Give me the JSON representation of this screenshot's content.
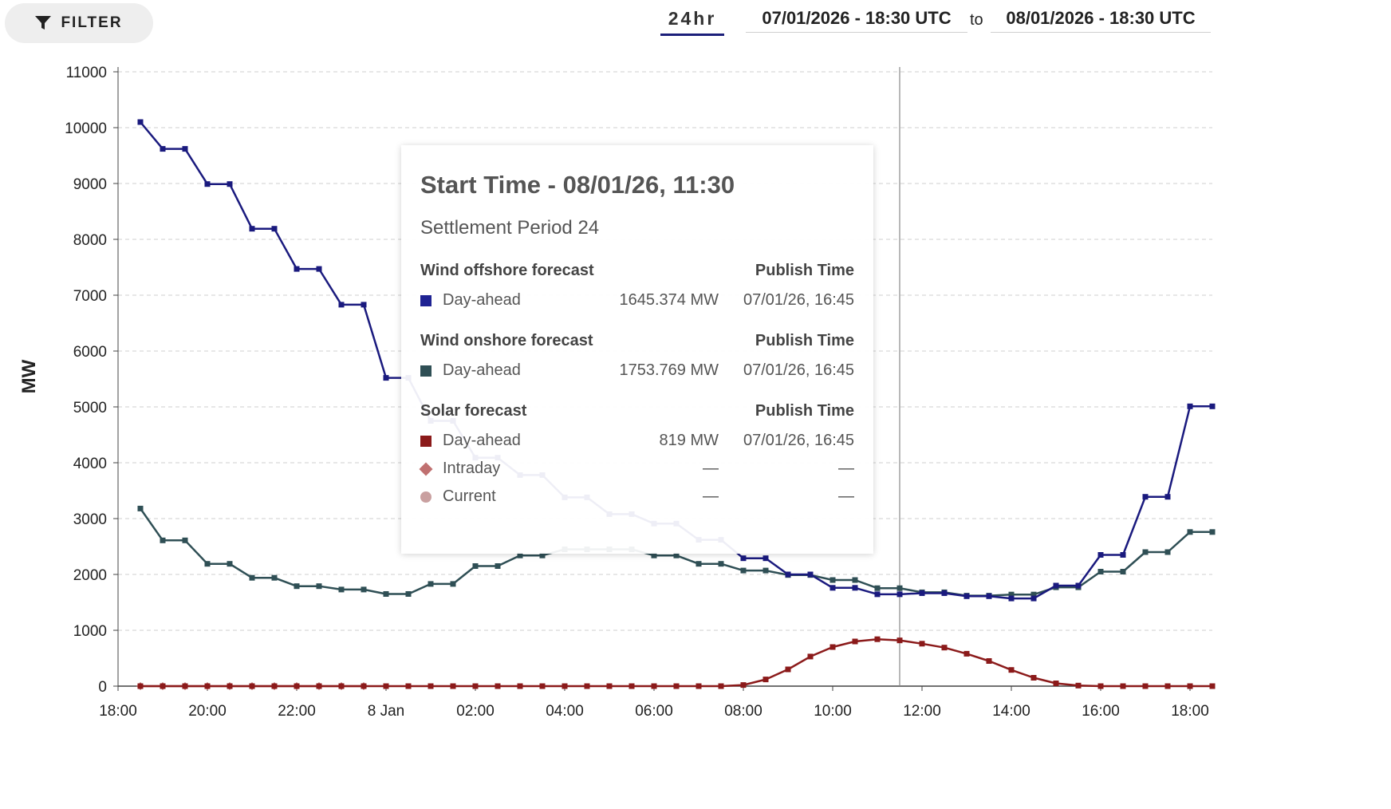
{
  "toolbar": {
    "filter_label": "FILTER",
    "range_label": "24hr",
    "date_from": "07/01/2026 - 18:30 UTC",
    "date_separator": "to",
    "date_to": "08/01/2026 - 18:30 UTC"
  },
  "tooltip": {
    "title": "Start Time - 08/01/26, 11:30",
    "subtitle": "Settlement Period 24",
    "groups": [
      {
        "name": "Wind offshore forecast",
        "time_header": "Publish Time",
        "rows": [
          {
            "marker": "square",
            "color": "#1f2393",
            "label": "Day-ahead",
            "value": "1645.374 MW",
            "time": "07/01/26, 16:45"
          }
        ]
      },
      {
        "name": "Wind onshore forecast",
        "time_header": "Publish Time",
        "rows": [
          {
            "marker": "square",
            "color": "#2f4f55",
            "label": "Day-ahead",
            "value": "1753.769 MW",
            "time": "07/01/26, 16:45"
          }
        ]
      },
      {
        "name": "Solar forecast",
        "time_header": "Publish Time",
        "rows": [
          {
            "marker": "square",
            "color": "#8b1a1a",
            "label": "Day-ahead",
            "value": "819 MW",
            "time": "07/01/26, 16:45"
          },
          {
            "marker": "diamond",
            "color": "#c07070",
            "label": "Intraday",
            "value": "—",
            "time": "—"
          },
          {
            "marker": "circle",
            "color": "#c9a0a0",
            "label": "Current",
            "value": "—",
            "time": "—"
          }
        ]
      }
    ]
  },
  "chart_data": {
    "type": "line",
    "ylabel": "MW",
    "ylim": [
      0,
      11000
    ],
    "y_ticks": [
      0,
      1000,
      2000,
      3000,
      4000,
      5000,
      6000,
      7000,
      8000,
      9000,
      10000,
      11000
    ],
    "x_range_hours": [
      18,
      42.5
    ],
    "x_ticks": [
      {
        "hour": 18,
        "label": "18:00"
      },
      {
        "hour": 20,
        "label": "20:00"
      },
      {
        "hour": 22,
        "label": "22:00"
      },
      {
        "hour": 24,
        "label": "8 Jan"
      },
      {
        "hour": 26,
        "label": "02:00"
      },
      {
        "hour": 28,
        "label": "04:00"
      },
      {
        "hour": 30,
        "label": "06:00"
      },
      {
        "hour": 32,
        "label": "08:00"
      },
      {
        "hour": 34,
        "label": "10:00"
      },
      {
        "hour": 36,
        "label": "12:00"
      },
      {
        "hour": 38,
        "label": "14:00"
      },
      {
        "hour": 40,
        "label": "16:00"
      },
      {
        "hour": 42,
        "label": "18:00"
      }
    ],
    "grid": true,
    "hover_hour": 35.5,
    "series": [
      {
        "name": "Wind offshore forecast",
        "color": "#1a1a7e",
        "x": [
          18.5,
          19,
          19.5,
          20,
          20.5,
          21,
          21.5,
          22,
          22.5,
          23,
          23.5,
          24,
          24.5,
          25,
          25.5,
          26,
          26.5,
          27,
          27.5,
          28,
          28.5,
          29,
          29.5,
          30,
          30.5,
          31,
          31.5,
          32,
          32.5,
          33,
          33.5,
          34,
          34.5,
          35,
          35.5,
          36,
          36.5,
          37,
          37.5,
          38,
          38.5,
          39,
          39.5,
          40,
          40.5,
          41,
          41.5,
          42,
          42.5
        ],
        "values": [
          10100,
          9620,
          9620,
          8990,
          8990,
          8190,
          8190,
          7470,
          7470,
          6830,
          6830,
          5520,
          5520,
          4750,
          4750,
          4090,
          4090,
          3780,
          3780,
          3380,
          3380,
          3080,
          3080,
          2910,
          2910,
          2620,
          2620,
          2290,
          2290,
          2000,
          2000,
          1760,
          1760,
          1645,
          1645,
          1665,
          1665,
          1610,
          1610,
          1570,
          1570,
          1800,
          1800,
          2350,
          2350,
          3390,
          3390,
          5010,
          5010
        ]
      },
      {
        "name": "Wind onshore forecast",
        "color": "#2f4f55",
        "x": [
          18.5,
          19,
          19.5,
          20,
          20.5,
          21,
          21.5,
          22,
          22.5,
          23,
          23.5,
          24,
          24.5,
          25,
          25.5,
          26,
          26.5,
          27,
          27.5,
          28,
          28.5,
          29,
          29.5,
          30,
          30.5,
          31,
          31.5,
          32,
          32.5,
          33,
          33.5,
          34,
          34.5,
          35,
          35.5,
          36,
          36.5,
          37,
          37.5,
          38,
          38.5,
          39,
          39.5,
          40,
          40.5,
          41,
          41.5,
          42,
          42.5
        ],
        "values": [
          3180,
          2610,
          2610,
          2190,
          2190,
          1940,
          1940,
          1790,
          1790,
          1730,
          1730,
          1650,
          1650,
          1830,
          1830,
          2150,
          2150,
          2340,
          2340,
          2450,
          2450,
          2450,
          2450,
          2340,
          2340,
          2190,
          2190,
          2070,
          2070,
          1990,
          1990,
          1900,
          1900,
          1754,
          1754,
          1680,
          1680,
          1620,
          1620,
          1640,
          1640,
          1770,
          1770,
          2050,
          2050,
          2400,
          2400,
          2760,
          2760
        ]
      },
      {
        "name": "Solar forecast",
        "color": "#8b1a1a",
        "x": [
          18.5,
          19,
          19.5,
          20,
          20.5,
          21,
          21.5,
          22,
          22.5,
          23,
          23.5,
          24,
          24.5,
          25,
          25.5,
          26,
          26.5,
          27,
          27.5,
          28,
          28.5,
          29,
          29.5,
          30,
          30.5,
          31,
          31.5,
          32,
          32.5,
          33,
          33.5,
          34,
          34.5,
          35,
          35.5,
          36,
          36.5,
          37,
          37.5,
          38,
          38.5,
          39,
          39.5,
          40,
          40.5,
          41,
          41.5,
          42,
          42.5
        ],
        "values": [
          0,
          0,
          0,
          0,
          0,
          0,
          0,
          0,
          0,
          0,
          0,
          0,
          0,
          0,
          0,
          0,
          0,
          0,
          0,
          0,
          0,
          0,
          0,
          0,
          0,
          0,
          0,
          20,
          120,
          300,
          530,
          700,
          800,
          840,
          819,
          760,
          690,
          580,
          450,
          290,
          150,
          50,
          10,
          0,
          0,
          0,
          0,
          0,
          0
        ]
      },
      {
        "name": "Solar intraday",
        "color": "#c07070",
        "x": [
          18.5,
          19,
          19.5,
          20,
          20.5,
          21,
          21.5,
          22,
          22.5,
          23,
          23.5
        ],
        "values": [
          0,
          0,
          0,
          0,
          0,
          0,
          0,
          0,
          0,
          0,
          0
        ]
      }
    ]
  }
}
